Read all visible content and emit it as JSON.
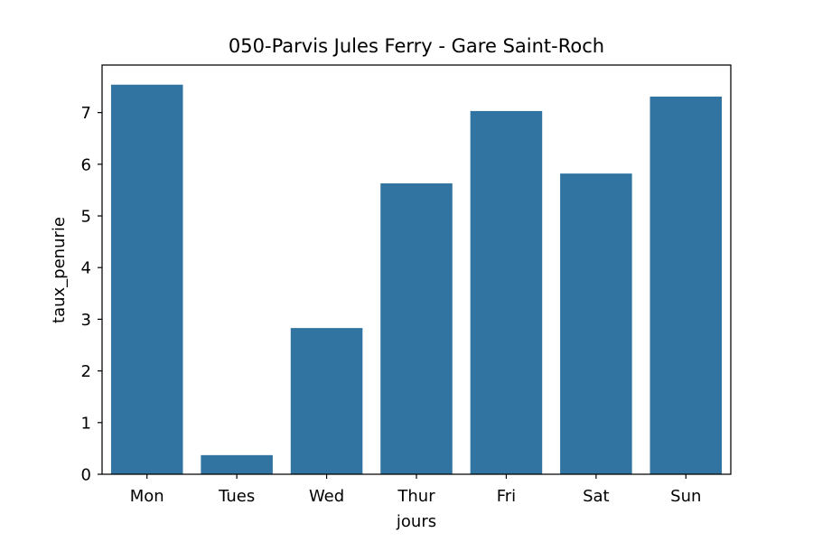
{
  "chart_data": {
    "type": "bar",
    "title": "050-Parvis Jules Ferry - Gare Saint-Roch",
    "xlabel": "jours",
    "ylabel": "taux_penurie",
    "categories": [
      "Mon",
      "Tues",
      "Wed",
      "Thur",
      "Fri",
      "Sat",
      "Sun"
    ],
    "values": [
      7.54,
      0.37,
      2.83,
      5.63,
      7.03,
      5.82,
      7.31
    ],
    "ylim": [
      0,
      7.92
    ],
    "yticks": [
      0,
      1,
      2,
      3,
      4,
      5,
      6,
      7
    ],
    "bar_color": "#3274a1",
    "grid": false,
    "legend": "none"
  }
}
